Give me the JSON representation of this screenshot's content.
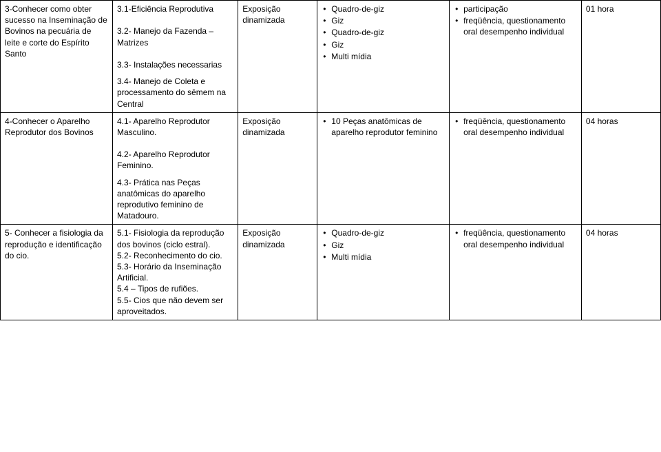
{
  "rows": [
    {
      "c1": "3-Conhecer como obter sucesso na Inseminação de Bovinos na pecuária de leite e corte do Espírito Santo",
      "c2": "3.1-Eficiência Reprodutiva\n\n 3.2- Manejo da Fazenda – Matrizes\n\n3.3- Instalações necessarias",
      "c3": "Exposição dinamizada",
      "c4_items": [
        "Quadro-de-giz",
        "Giz",
        "Quadro-de-giz",
        "Giz",
        "Multi mídia"
      ],
      "c5_items": [
        "participação",
        "freqüência, questionamento oral desempenho individual"
      ],
      "c6": "01 hora"
    },
    {
      "c1_blank": "",
      "c2_pre": "3.4- Manejo de Coleta e processamento do sêmem na Central",
      "c1": "4-Conhecer o Aparelho Reprodutor dos Bovinos",
      "c2": "4.1- Aparelho Reprodutor Masculino.\n\n4.2- Aparelho Reprodutor Feminino.",
      "c3": "Exposição dinamizada",
      "c4_items": [
        "10 Peças anatômicas de aparelho reprodutor feminino"
      ],
      "c5_items": [
        "freqüência, questionamento oral desempenho individual"
      ],
      "c6": "04 horas"
    },
    {
      "c1_blank": "",
      "c2_pre": "4.3- Prática nas Peças anatômicas do aparelho reprodutivo feminino de Matadouro.",
      "c1": "5- Conhecer a fisiologia da reprodução e identificação do cio.",
      "c2": "5.1- Fisiologia da reprodução dos bovinos (ciclo estral).\n5.2- Reconhecimento do cio.\n5.3- Horário da Inseminação Artificial.\n5.4 – Tipos de rufiões.\n5.5- Cios que não devem ser aproveitados.",
      "c3": "Exposição dinamizada",
      "c4_items": [
        "Quadro-de-giz",
        "Giz",
        "Multi mídia"
      ],
      "c5_items": [
        "freqüência, questionamento oral desempenho individual"
      ],
      "c6": "04 horas"
    }
  ]
}
